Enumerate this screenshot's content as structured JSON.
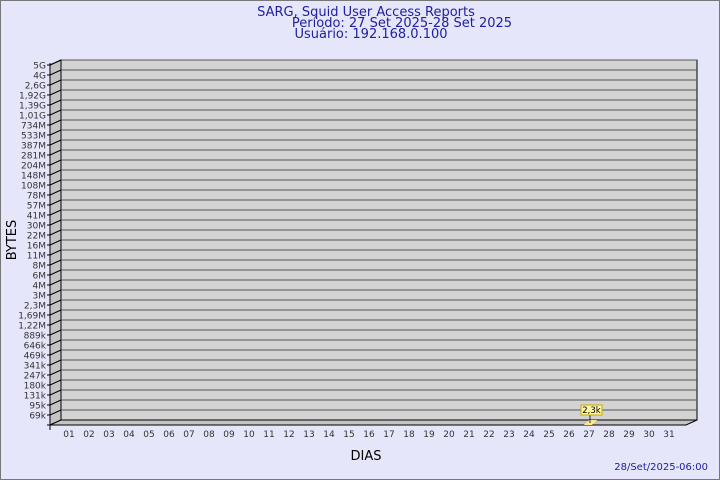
{
  "chart_data": {
    "type": "bar",
    "title": "SARG, Squid User Access Reports",
    "subtitle_period": "Período: 27 Set 2025-28 Set 2025",
    "subtitle_user": "Usuário: 192.168.0.100",
    "xlabel": "DIAS",
    "ylabel": "BYTES",
    "y_scale": "log",
    "y_tick_labels": [
      "5G",
      "4G",
      "2,6G",
      "1,92G",
      "1,39G",
      "1,01G",
      "734M",
      "533M",
      "387M",
      "281M",
      "204M",
      "148M",
      "108M",
      "78M",
      "57M",
      "41M",
      "30M",
      "22M",
      "16M",
      "11M",
      "8M",
      "6M",
      "4M",
      "3M",
      "2,3M",
      "1,69M",
      "1,22M",
      "889k",
      "646k",
      "469k",
      "341k",
      "247k",
      "180k",
      "131k",
      "95k",
      "69k"
    ],
    "categories": [
      "01",
      "02",
      "03",
      "04",
      "05",
      "06",
      "07",
      "08",
      "09",
      "10",
      "11",
      "12",
      "13",
      "14",
      "15",
      "16",
      "17",
      "18",
      "19",
      "20",
      "21",
      "22",
      "23",
      "24",
      "25",
      "26",
      "27",
      "28",
      "29",
      "30",
      "31"
    ],
    "bars": [
      {
        "category": "27",
        "value": 2300,
        "label": "2,3k"
      }
    ],
    "grid": true,
    "colors": {
      "background": "#e6e6fa",
      "plot": "#d3d3d3",
      "bar": "#ffe88a",
      "label_box": "#fff6a0",
      "text": "#2020a0"
    }
  },
  "footer": {
    "timestamp": "28/Set/2025-06:00"
  }
}
